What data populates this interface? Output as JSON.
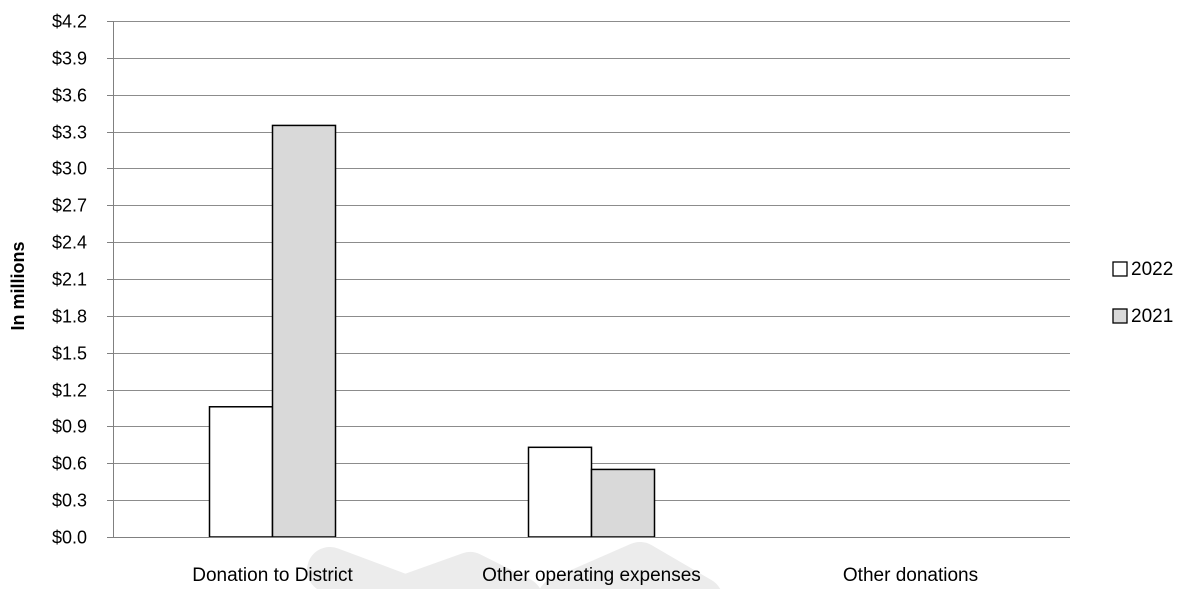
{
  "chart_data": {
    "type": "bar",
    "categories": [
      "Donation to District",
      "Other operating expenses",
      "Other donations"
    ],
    "series": [
      {
        "name": "2022",
        "values": [
          1.06,
          0.73,
          0
        ],
        "color": "#ffffff"
      },
      {
        "name": "2021",
        "values": [
          3.35,
          0.55,
          0
        ],
        "color": "#d9d9d9"
      }
    ],
    "ylabel": "In millions",
    "ylim": [
      0,
      4.2
    ],
    "y_ticks": [
      0,
      0.3,
      0.6,
      0.9,
      1.2,
      1.5,
      1.8,
      2.1,
      2.4,
      2.7,
      3.0,
      3.3,
      3.6,
      3.9,
      4.2
    ],
    "y_tick_labels": [
      "$0.0",
      "$0.3",
      "$0.6",
      "$0.9",
      "$1.2",
      "$1.5",
      "$1.8",
      "$2.1",
      "$2.4",
      "$2.7",
      "$3.0",
      "$3.3",
      "$3.6",
      "$3.9",
      "$4.2"
    ],
    "grid": true,
    "legend_position": "right"
  }
}
